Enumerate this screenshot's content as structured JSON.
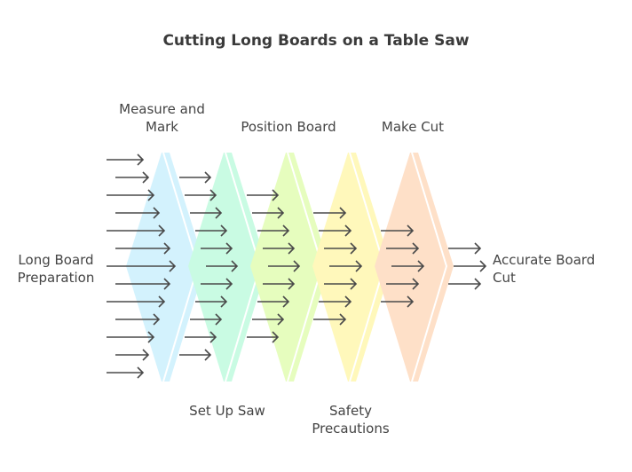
{
  "title": "Cutting Long Boards on a Table Saw",
  "input_label": "Long Board Preparation",
  "output_label": "Accurate Board Cut",
  "steps": [
    {
      "label": "Measure and Mark",
      "color": "#d3f2fd"
    },
    {
      "label": "Set Up Saw",
      "color": "#c9fbe3"
    },
    {
      "label": "Position Board",
      "color": "#e6fdbe"
    },
    {
      "label": "Safety Precautions",
      "color": "#fff8bb"
    },
    {
      "label": "Make Cut",
      "color": "#fee0c8"
    }
  ],
  "arrow_color": "#4a4a4a"
}
